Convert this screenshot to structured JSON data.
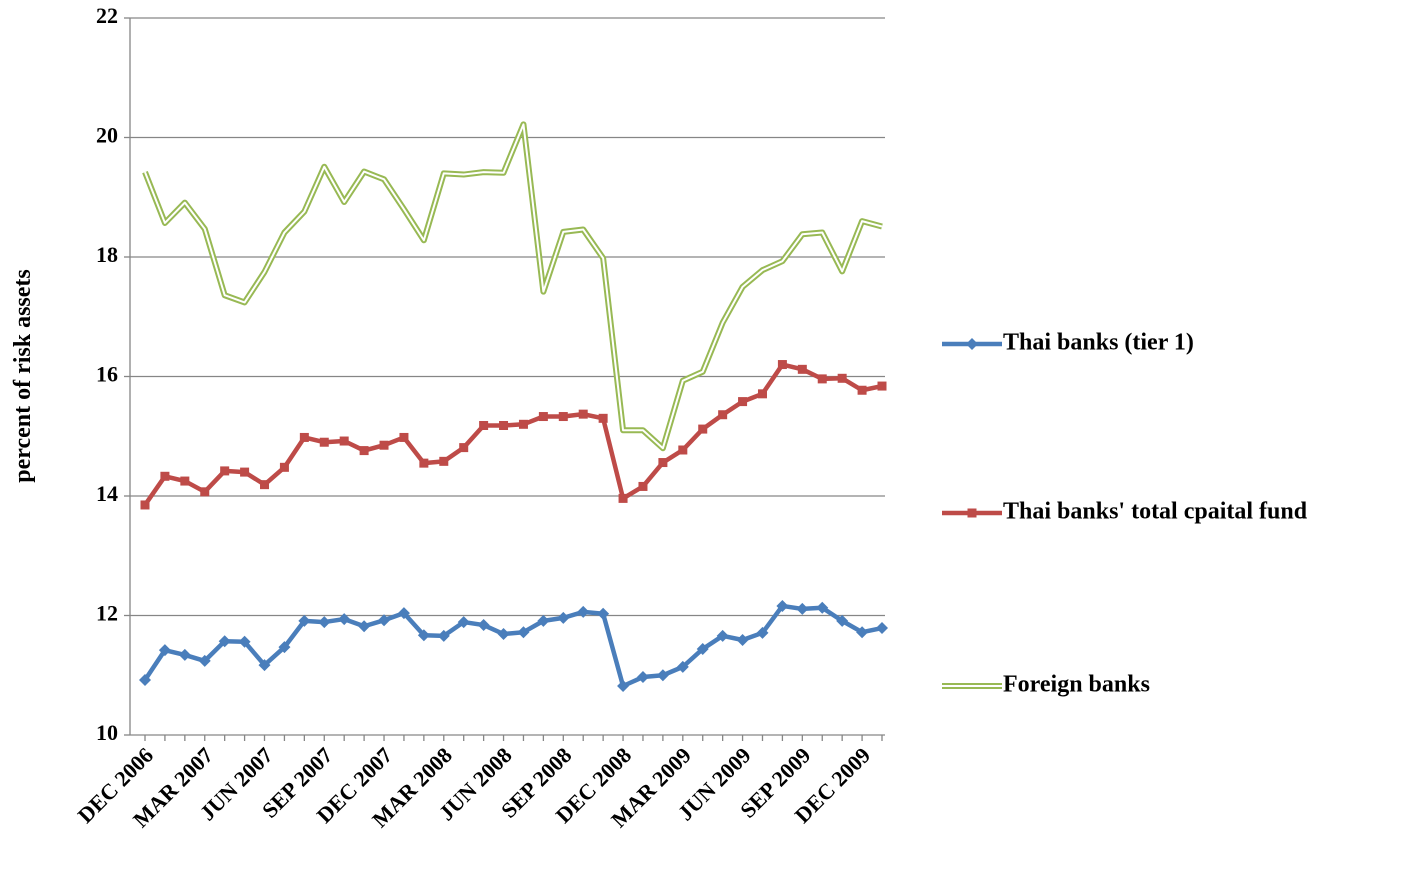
{
  "chart_data": {
    "type": "line",
    "y_label": "percent of risk assets",
    "categories": [
      "DEC 2006",
      null,
      null,
      "MAR 2007",
      null,
      null,
      "JUN 2007",
      null,
      null,
      "SEP 2007",
      null,
      null,
      "DEC 2007",
      null,
      null,
      "MAR 2008",
      null,
      null,
      "JUN 2008",
      null,
      null,
      "SEP 2008",
      null,
      null,
      "DEC 2008",
      null,
      null,
      "MAR 2009",
      null,
      null,
      "JUN 2009",
      null,
      null,
      "SEP 2009",
      null,
      null,
      "DEC 2009",
      null
    ],
    "series": [
      {
        "name": "Thai banks (tier 1)",
        "color": "#4a7ebb",
        "marker": "diamond",
        "values": [
          10.92,
          11.42,
          11.34,
          11.24,
          11.57,
          11.56,
          11.17,
          11.47,
          11.91,
          11.89,
          11.94,
          11.82,
          11.92,
          12.04,
          11.67,
          11.66,
          11.89,
          11.84,
          11.69,
          11.72,
          11.91,
          11.96,
          12.06,
          12.03,
          10.82,
          10.97,
          11.0,
          11.14,
          11.44,
          11.66,
          11.59,
          11.71,
          12.16,
          12.11,
          12.13,
          11.91,
          11.72,
          11.79
        ]
      },
      {
        "name": "Thai banks' total cpaital fund",
        "color": "#be4b48",
        "marker": "square",
        "values": [
          13.85,
          14.33,
          14.25,
          14.07,
          14.42,
          14.4,
          14.19,
          14.48,
          14.98,
          14.9,
          14.92,
          14.76,
          14.85,
          14.98,
          14.55,
          14.58,
          14.81,
          15.18,
          15.18,
          15.2,
          15.33,
          15.33,
          15.37,
          15.3,
          13.96,
          14.16,
          14.56,
          14.77,
          15.12,
          15.36,
          15.58,
          15.71,
          16.2,
          16.12,
          15.96,
          15.97,
          15.77,
          15.84
        ]
      },
      {
        "name": "Foreign banks",
        "color": "#98b954",
        "marker": "none",
        "values": [
          19.42,
          18.57,
          18.91,
          18.47,
          17.36,
          17.24,
          17.75,
          18.41,
          18.76,
          19.51,
          18.92,
          19.43,
          19.3,
          18.8,
          18.28,
          19.4,
          19.38,
          19.42,
          19.41,
          20.22,
          17.42,
          18.42,
          18.46,
          17.98,
          15.1,
          15.1,
          14.8,
          15.93,
          16.08,
          16.9,
          17.5,
          17.78,
          17.93,
          18.38,
          18.41,
          17.76,
          18.6,
          18.51
        ]
      }
    ],
    "ylim": [
      10,
      22
    ],
    "yticks": [
      10,
      12,
      14,
      16,
      18,
      20,
      22
    ],
    "grid": true,
    "legend": "right"
  }
}
